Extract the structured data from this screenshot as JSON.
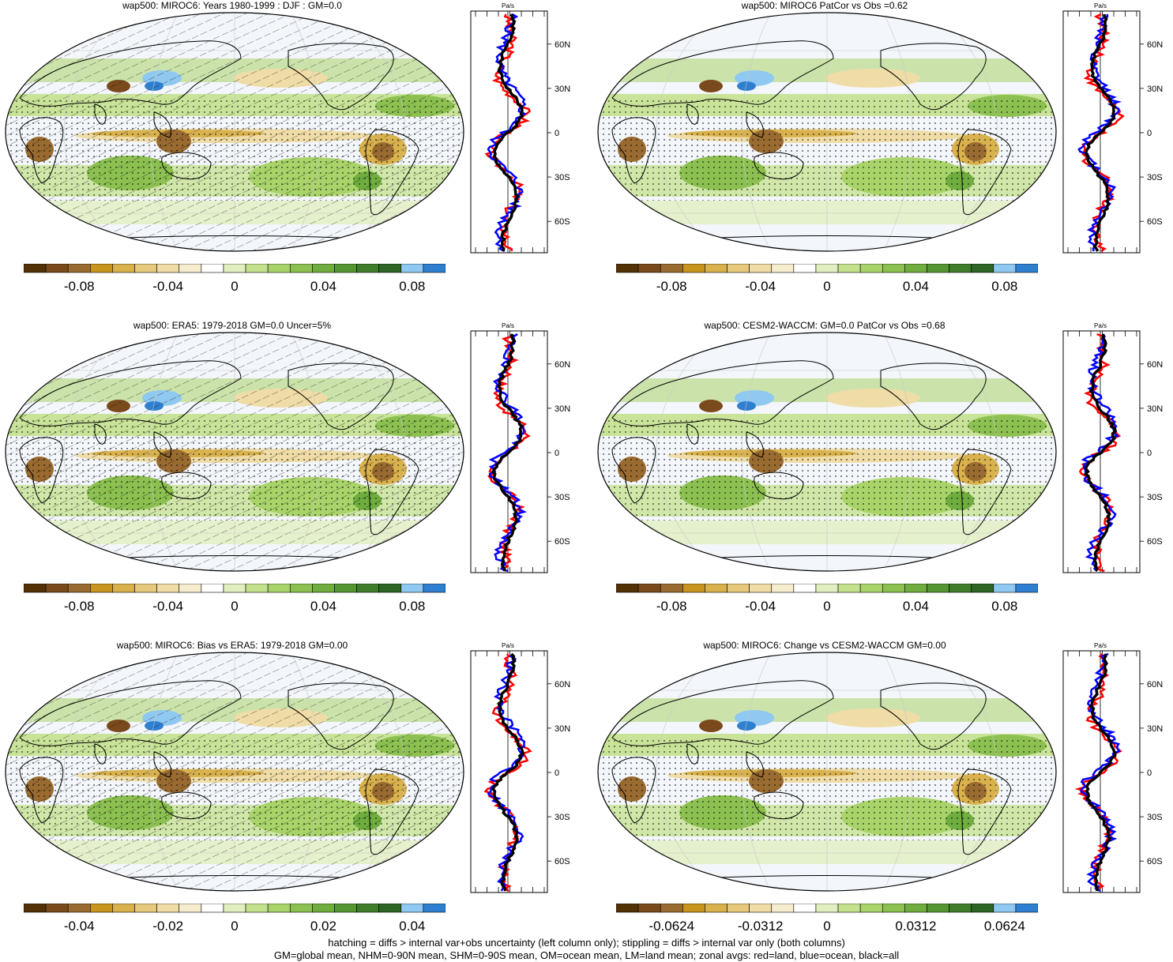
{
  "panels": [
    {
      "title": "wap500: MIROC6: Years 1980-1999 : DJF : GM=0.0",
      "hatched": true,
      "colorbar_labels": [
        "-0.08",
        "-0.04",
        "0",
        "0.04",
        "0.08"
      ],
      "zonal_ticks": [
        "-0.030",
        "-0.010",
        "0.010",
        "0.030"
      ],
      "zonal_unit": "Pa/s",
      "lat_labels": [
        "60N",
        "30N",
        "0",
        "30S",
        "60S"
      ]
    },
    {
      "title": "wap500: MIROC6 PatCor vs Obs =0.62",
      "hatched": false,
      "colorbar_labels": [
        "-0.08",
        "-0.04",
        "0",
        "0.04",
        "0.08"
      ],
      "zonal_ticks": [
        "-0.030",
        "-0.010",
        "0.010",
        "0.030"
      ],
      "zonal_unit": "Pa/s",
      "lat_labels": [
        "60N",
        "30N",
        "0",
        "30S",
        "60S"
      ]
    },
    {
      "title": "wap500: ERA5: 1979-2018 GM=0.0 Uncer=5%",
      "hatched": true,
      "colorbar_labels": [
        "-0.08",
        "-0.04",
        "0",
        "0.04",
        "0.08"
      ],
      "zonal_ticks": [
        "-0.030",
        "-0.010",
        "0.010",
        "0.030"
      ],
      "zonal_unit": "Pa/s",
      "lat_labels": [
        "60N",
        "30N",
        "0",
        "30S",
        "60S"
      ]
    },
    {
      "title": "wap500: CESM2-WACCM: GM=0.0 PatCor vs Obs =0.68",
      "hatched": false,
      "colorbar_labels": [
        "-0.08",
        "-0.04",
        "0",
        "0.04",
        "0.08"
      ],
      "zonal_ticks": [
        "-0.030",
        "-0.010",
        "0.010",
        "0.030"
      ],
      "zonal_unit": "Pa/s",
      "lat_labels": [
        "60N",
        "30N",
        "0",
        "30S",
        "60S"
      ]
    },
    {
      "title": "wap500: MIROC6: Bias vs ERA5: 1979-2018 GM=0.00",
      "hatched": true,
      "colorbar_labels": [
        "-0.04",
        "-0.02",
        "0",
        "0.02",
        "0.04"
      ],
      "zonal_ticks": [
        "-0.030",
        "-0.010",
        "0.010",
        "0.030"
      ],
      "zonal_unit": "Pa/s",
      "lat_labels": [
        "60N",
        "30N",
        "0",
        "30S",
        "60S"
      ]
    },
    {
      "title": "wap500: MIROC6: Change vs CESM2-WACCM GM=0.00",
      "hatched": false,
      "colorbar_labels": [
        "-0.0624",
        "-0.0312",
        "0",
        "0.0312",
        "0.0624"
      ],
      "zonal_ticks": [
        "-0.040",
        "0.000"
      ],
      "zonal_unit": "Pa/s",
      "lat_labels": [
        "60N",
        "30N",
        "0",
        "30S",
        "60S"
      ]
    }
  ],
  "colorbar_colors": [
    "#543005",
    "#7a4a1c",
    "#9a6b30",
    "#c8961e",
    "#d9b24e",
    "#e6c97c",
    "#efdca6",
    "#f6ecce",
    "#ffffff",
    "#e1efc0",
    "#c4e28e",
    "#a9d46a",
    "#8cc151",
    "#6fad3f",
    "#549633",
    "#3f7d2b",
    "#2c6622",
    "#8fc8f0",
    "#2f7fd0"
  ],
  "zonal_legend": {
    "land": "#ff0000",
    "ocean": "#0000ff",
    "all": "#000000"
  },
  "captions": [
    "hatching = diffs > internal var+obs uncertainty (left column only); stippling = diffs > internal var only (both columns)",
    "GM=global mean, NHM=0-90N mean, SHM=0-90S mean, OM=ocean mean, LM=land mean; zonal avgs: red=land, blue=ocean, black=all"
  ]
}
